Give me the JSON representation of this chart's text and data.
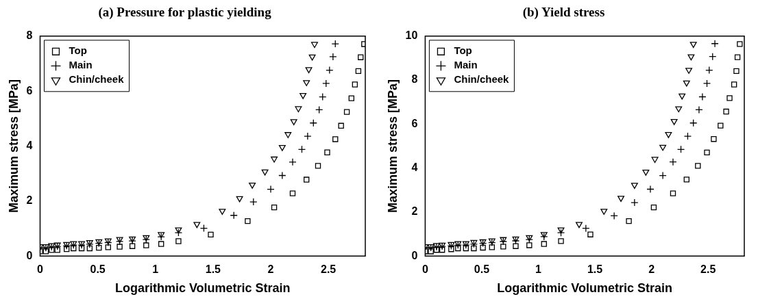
{
  "chart_data": [
    {
      "type": "scatter",
      "title": "(a) Pressure for plastic yielding",
      "xlabel": "Logarithmic Volumetric Strain",
      "ylabel": "Maximum stress [MPa]",
      "xlim": [
        0,
        2.82
      ],
      "ylim": [
        0,
        8
      ],
      "xticks": [
        0,
        0.5,
        1,
        1.5,
        2,
        2.5
      ],
      "yticks": [
        0,
        2,
        4,
        6,
        8
      ],
      "grid": false,
      "legend": "top left",
      "series": [
        {
          "name": "Top",
          "color": "#000000",
          "marker": "square",
          "x": [
            0,
            0.05,
            0.1,
            0.15,
            0.23,
            0.29,
            0.36,
            0.43,
            0.51,
            0.59,
            0.69,
            0.8,
            0.92,
            1.05,
            1.2,
            1.48,
            1.8,
            2.03,
            2.19,
            2.31,
            2.41,
            2.49,
            2.56,
            2.61,
            2.66,
            2.7,
            2.73,
            2.76,
            2.78,
            2.81
          ],
          "values": [
            0.17,
            0.17,
            0.22,
            0.22,
            0.25,
            0.28,
            0.28,
            0.28,
            0.3,
            0.32,
            0.34,
            0.36,
            0.39,
            0.44,
            0.54,
            0.78,
            1.27,
            1.77,
            2.28,
            2.78,
            3.28,
            3.77,
            4.25,
            4.74,
            5.24,
            5.74,
            6.24,
            6.73,
            7.23,
            7.71
          ]
        },
        {
          "name": "Main",
          "color": "#000000",
          "marker": "cross",
          "x": [
            0,
            0.05,
            0.1,
            0.15,
            0.23,
            0.29,
            0.36,
            0.43,
            0.51,
            0.59,
            0.69,
            0.8,
            0.92,
            1.05,
            1.2,
            1.42,
            1.68,
            1.85,
            2.0,
            2.1,
            2.19,
            2.27,
            2.32,
            2.37,
            2.42,
            2.45,
            2.48,
            2.51,
            2.54,
            2.56
          ],
          "values": [
            0.3,
            0.3,
            0.33,
            0.35,
            0.37,
            0.4,
            0.4,
            0.43,
            0.46,
            0.49,
            0.53,
            0.55,
            0.6,
            0.7,
            0.85,
            1.01,
            1.48,
            1.97,
            2.43,
            2.93,
            3.42,
            3.88,
            4.36,
            4.84,
            5.32,
            5.79,
            6.28,
            6.76,
            7.25,
            7.72
          ]
        },
        {
          "name": "Chin/cheek",
          "color": "#000000",
          "marker": "triangle",
          "x": [
            0,
            0.05,
            0.1,
            0.15,
            0.23,
            0.29,
            0.36,
            0.43,
            0.51,
            0.59,
            0.69,
            0.8,
            0.92,
            1.05,
            1.2,
            1.36,
            1.58,
            1.73,
            1.84,
            1.95,
            2.03,
            2.1,
            2.15,
            2.2,
            2.24,
            2.28,
            2.31,
            2.33,
            2.36,
            2.38
          ],
          "values": [
            0.35,
            0.35,
            0.39,
            0.41,
            0.43,
            0.46,
            0.46,
            0.5,
            0.53,
            0.56,
            0.61,
            0.63,
            0.68,
            0.79,
            0.96,
            1.16,
            1.64,
            2.1,
            2.59,
            3.07,
            3.54,
            3.96,
            4.43,
            4.9,
            5.37,
            5.85,
            6.32,
            6.79,
            7.25,
            7.71
          ]
        }
      ]
    },
    {
      "type": "scatter",
      "title": "(b) Yield stress",
      "xlabel": "Logarithmic Volumetric Strain",
      "ylabel": "Maximum stress [MPa]",
      "xlim": [
        0,
        2.82
      ],
      "ylim": [
        0,
        10
      ],
      "xticks": [
        0,
        0.5,
        1,
        1.5,
        2,
        2.5
      ],
      "yticks": [
        0,
        2,
        4,
        6,
        8,
        10
      ],
      "grid": false,
      "legend": "top left",
      "series": [
        {
          "name": "Top",
          "color": "#000000",
          "marker": "square",
          "x": [
            0,
            0.05,
            0.1,
            0.15,
            0.23,
            0.29,
            0.36,
            0.43,
            0.51,
            0.59,
            0.69,
            0.8,
            0.92,
            1.05,
            1.2,
            1.46,
            1.8,
            2.02,
            2.19,
            2.31,
            2.41,
            2.49,
            2.55,
            2.61,
            2.66,
            2.69,
            2.73,
            2.75,
            2.76,
            2.78
          ],
          "values": [
            0.21,
            0.21,
            0.28,
            0.28,
            0.31,
            0.35,
            0.35,
            0.35,
            0.38,
            0.4,
            0.43,
            0.45,
            0.49,
            0.55,
            0.68,
            0.98,
            1.59,
            2.21,
            2.85,
            3.48,
            4.1,
            4.71,
            5.32,
            5.93,
            6.57,
            7.18,
            7.8,
            8.41,
            9.04,
            9.64
          ]
        },
        {
          "name": "Main",
          "color": "#000000",
          "marker": "cross",
          "x": [
            0,
            0.05,
            0.1,
            0.15,
            0.23,
            0.29,
            0.36,
            0.43,
            0.51,
            0.59,
            0.69,
            0.8,
            0.92,
            1.05,
            1.2,
            1.42,
            1.67,
            1.85,
            1.99,
            2.1,
            2.19,
            2.26,
            2.32,
            2.37,
            2.42,
            2.45,
            2.49,
            2.51,
            2.54,
            2.56
          ],
          "values": [
            0.38,
            0.38,
            0.41,
            0.44,
            0.46,
            0.5,
            0.5,
            0.54,
            0.58,
            0.61,
            0.66,
            0.69,
            0.75,
            0.88,
            1.06,
            1.26,
            1.83,
            2.43,
            3.04,
            3.66,
            4.28,
            4.85,
            5.45,
            6.05,
            6.65,
            7.24,
            7.85,
            8.45,
            9.07,
            9.66
          ]
        },
        {
          "name": "Chin/cheek",
          "color": "#000000",
          "marker": "triangle",
          "x": [
            0,
            0.05,
            0.1,
            0.15,
            0.23,
            0.29,
            0.36,
            0.43,
            0.51,
            0.59,
            0.69,
            0.8,
            0.92,
            1.05,
            1.2,
            1.36,
            1.58,
            1.73,
            1.85,
            1.95,
            2.03,
            2.1,
            2.15,
            2.2,
            2.24,
            2.27,
            2.31,
            2.33,
            2.35,
            2.37
          ],
          "values": [
            0.44,
            0.44,
            0.49,
            0.51,
            0.54,
            0.58,
            0.58,
            0.63,
            0.66,
            0.7,
            0.76,
            0.79,
            0.85,
            0.99,
            1.2,
            1.45,
            2.05,
            2.64,
            3.23,
            3.83,
            4.41,
            4.96,
            5.54,
            6.13,
            6.71,
            7.29,
            7.88,
            8.46,
            9.07,
            9.64
          ]
        }
      ]
    }
  ]
}
